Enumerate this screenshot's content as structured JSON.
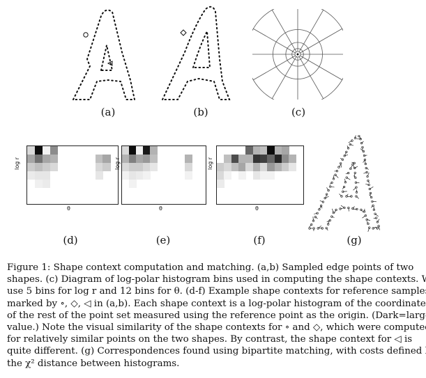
{
  "figure": {
    "panels": [
      {
        "id": "a",
        "label": "(a)"
      },
      {
        "id": "b",
        "label": "(b)"
      },
      {
        "id": "c",
        "label": "(c)"
      },
      {
        "id": "d",
        "label": "(d)",
        "ylabel": "log r",
        "xlabel": "θ"
      },
      {
        "id": "e",
        "label": "(e)",
        "ylabel": "log r",
        "xlabel": "θ"
      },
      {
        "id": "f",
        "label": "(f)",
        "ylabel": "log r",
        "xlabel": "θ"
      },
      {
        "id": "g",
        "label": "(g)"
      }
    ],
    "polar_diagram": {
      "log_r_bins": 5,
      "theta_bins": 12
    },
    "histograms": {
      "d": [
        [
          0.15,
          0.95,
          0.05,
          0.45,
          0,
          0,
          0,
          0,
          0,
          0,
          0,
          0
        ],
        [
          0.35,
          0.55,
          0.35,
          0.3,
          0,
          0,
          0,
          0,
          0,
          0.25,
          0.35,
          0
        ],
        [
          0.2,
          0.25,
          0.2,
          0.15,
          0,
          0,
          0,
          0,
          0,
          0.15,
          0.2,
          0
        ],
        [
          0.08,
          0.1,
          0.1,
          0,
          0,
          0,
          0,
          0,
          0,
          0.1,
          0,
          0
        ],
        [
          0,
          0.06,
          0.08,
          0,
          0,
          0,
          0,
          0,
          0,
          0,
          0,
          0
        ]
      ],
      "e": [
        [
          0.15,
          0.95,
          0.05,
          0.9,
          0.3,
          0,
          0,
          0,
          0,
          0,
          0,
          0
        ],
        [
          0.3,
          0.5,
          0.35,
          0.4,
          0.25,
          0,
          0,
          0,
          0,
          0.3,
          0,
          0
        ],
        [
          0.15,
          0.2,
          0.2,
          0.15,
          0.1,
          0,
          0,
          0,
          0,
          0.15,
          0,
          0
        ],
        [
          0.05,
          0.1,
          0.08,
          0.05,
          0,
          0,
          0,
          0,
          0,
          0.05,
          0,
          0
        ],
        [
          0,
          0.05,
          0,
          0,
          0,
          0,
          0,
          0,
          0,
          0,
          0,
          0
        ]
      ],
      "f": [
        [
          0,
          0,
          0,
          0,
          0.6,
          0.3,
          0.25,
          0.95,
          0.3,
          0.35,
          0,
          0
        ],
        [
          0,
          0.25,
          0.7,
          0.3,
          0.3,
          0.8,
          0.75,
          0.6,
          0.85,
          0.45,
          0.3,
          0
        ],
        [
          0.2,
          0.15,
          0.25,
          0.35,
          0.15,
          0.3,
          0.15,
          0.4,
          0.3,
          0.2,
          0.1,
          0
        ],
        [
          0.15,
          0.05,
          0,
          0.05,
          0,
          0.1,
          0.05,
          0.05,
          0,
          0,
          0,
          0
        ],
        [
          0.08,
          0,
          0,
          0,
          0,
          0,
          0,
          0,
          0,
          0,
          0,
          0
        ]
      ]
    }
  },
  "caption": {
    "lines": [
      "Figure 1: Shape context computation and matching. (a,b) Sampled edge points of two",
      "shapes. (c) Diagram of log-polar histogram bins used in computing the shape contexts. We",
      "use 5 bins for log r and 12 bins for θ. (d-f) Example shape contexts for reference samples",
      "marked by ∘, ◇, ◁ in (a,b). Each shape context is a log-polar histogram of the coordinates",
      "of the rest of the point set measured using the reference point as the origin. (Dark=large",
      "value.) Note the visual similarity of the shape contexts for ∘ and ◇, which were computed",
      "for relatively similar points on the two shapes. By contrast, the shape context for ◁ is",
      "quite different. (g) Correspondences found using bipartite matching, with costs defined by",
      "the χ² distance between histograms."
    ]
  }
}
